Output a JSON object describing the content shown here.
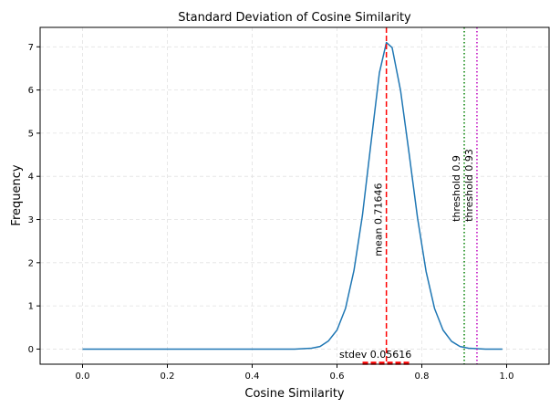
{
  "chart_data": {
    "type": "line",
    "title": "Standard Deviation of Cosine Similarity",
    "xlabel": "Cosine Similarity",
    "ylabel": "Frequency",
    "xlim": [
      -0.1,
      1.1
    ],
    "ylim": [
      -0.35,
      7.45
    ],
    "xticks": [
      0.0,
      0.2,
      0.4,
      0.6,
      0.8,
      1.0
    ],
    "xtick_labels": [
      "0.0",
      "0.2",
      "0.4",
      "0.6",
      "0.8",
      "1.0"
    ],
    "yticks": [
      0,
      1,
      2,
      3,
      4,
      5,
      6,
      7
    ],
    "ytick_labels": [
      "0",
      "1",
      "2",
      "3",
      "4",
      "5",
      "6",
      "7"
    ],
    "grid": true,
    "series": [
      {
        "color": "#1f77b4",
        "x": [
          0.0,
          0.05,
          0.1,
          0.15,
          0.2,
          0.25,
          0.3,
          0.35,
          0.4,
          0.45,
          0.5,
          0.52,
          0.54,
          0.56,
          0.58,
          0.6,
          0.62,
          0.64,
          0.66,
          0.68,
          0.7,
          0.71646,
          0.73,
          0.75,
          0.77,
          0.79,
          0.81,
          0.83,
          0.85,
          0.87,
          0.89,
          0.91,
          0.93,
          0.95,
          0.97,
          0.99
        ],
        "y": [
          0.0,
          0.0,
          0.0,
          0.0,
          0.0,
          0.0,
          0.0,
          0.0,
          0.0,
          0.0,
          0.0,
          0.01,
          0.02,
          0.06,
          0.19,
          0.44,
          0.94,
          1.82,
          3.1,
          4.76,
          6.4,
          7.1,
          6.98,
          5.98,
          4.53,
          3.03,
          1.8,
          0.94,
          0.44,
          0.18,
          0.06,
          0.02,
          0.01,
          0.0,
          0.0,
          0.0
        ]
      }
    ],
    "vlines": [
      {
        "x": 0.71646,
        "color": "#ff0000",
        "style": "dashed",
        "label": "mean 0.71646",
        "label_y": 2.15
      },
      {
        "x": 0.9,
        "color": "#008000",
        "style": "dotted",
        "label": "threshold 0.9",
        "label_y": 2.95
      },
      {
        "x": 0.93,
        "color": "#bf00bf",
        "style": "dotted",
        "label": "threshold 0.93",
        "label_y": 2.95
      }
    ],
    "stdev_bar": {
      "xmin": 0.6603,
      "xmax": 0.77262,
      "y": -0.35,
      "color": "#ff0000",
      "label": "stdev 0.05616"
    }
  }
}
